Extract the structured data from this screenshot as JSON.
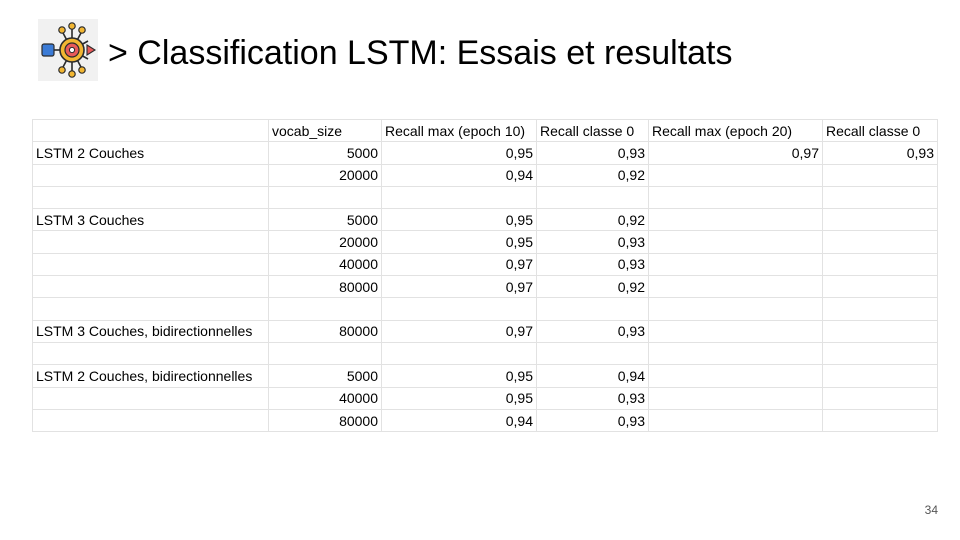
{
  "slide": {
    "title": "> Classification LSTM: Essais et resultats",
    "page_number": "34"
  },
  "table": {
    "headers": [
      "",
      "vocab_size",
      "Recall max (epoch 10)",
      "Recall classe 0",
      "Recall max (epoch 20)",
      "Recall classe 0"
    ],
    "rows": [
      [
        "LSTM 2 Couches",
        "5000",
        "0,95",
        "0,93",
        "0,97",
        "0,93"
      ],
      [
        "",
        "20000",
        "0,94",
        "0,92",
        "",
        ""
      ],
      [
        "",
        "",
        "",
        "",
        "",
        ""
      ],
      [
        "LSTM 3 Couches",
        "5000",
        "0,95",
        "0,92",
        "",
        ""
      ],
      [
        "",
        "20000",
        "0,95",
        "0,93",
        "",
        ""
      ],
      [
        "",
        "40000",
        "0,97",
        "0,93",
        "",
        ""
      ],
      [
        "",
        "80000",
        "0,97",
        "0,92",
        "",
        ""
      ],
      [
        "",
        "",
        "",
        "",
        "",
        ""
      ],
      [
        "LSTM 3 Couches, bidirectionnelles",
        "80000",
        "0,97",
        "0,93",
        "",
        ""
      ],
      [
        "",
        "",
        "",
        "",
        "",
        ""
      ],
      [
        "LSTM 2 Couches, bidirectionnelles",
        "5000",
        "0,95",
        "0,94",
        "",
        ""
      ],
      [
        "",
        "40000",
        "0,95",
        "0,93",
        "",
        ""
      ],
      [
        "",
        "80000",
        "0,94",
        "0,93",
        "",
        ""
      ]
    ]
  },
  "logo": {
    "icon": "neural-network-icon"
  }
}
